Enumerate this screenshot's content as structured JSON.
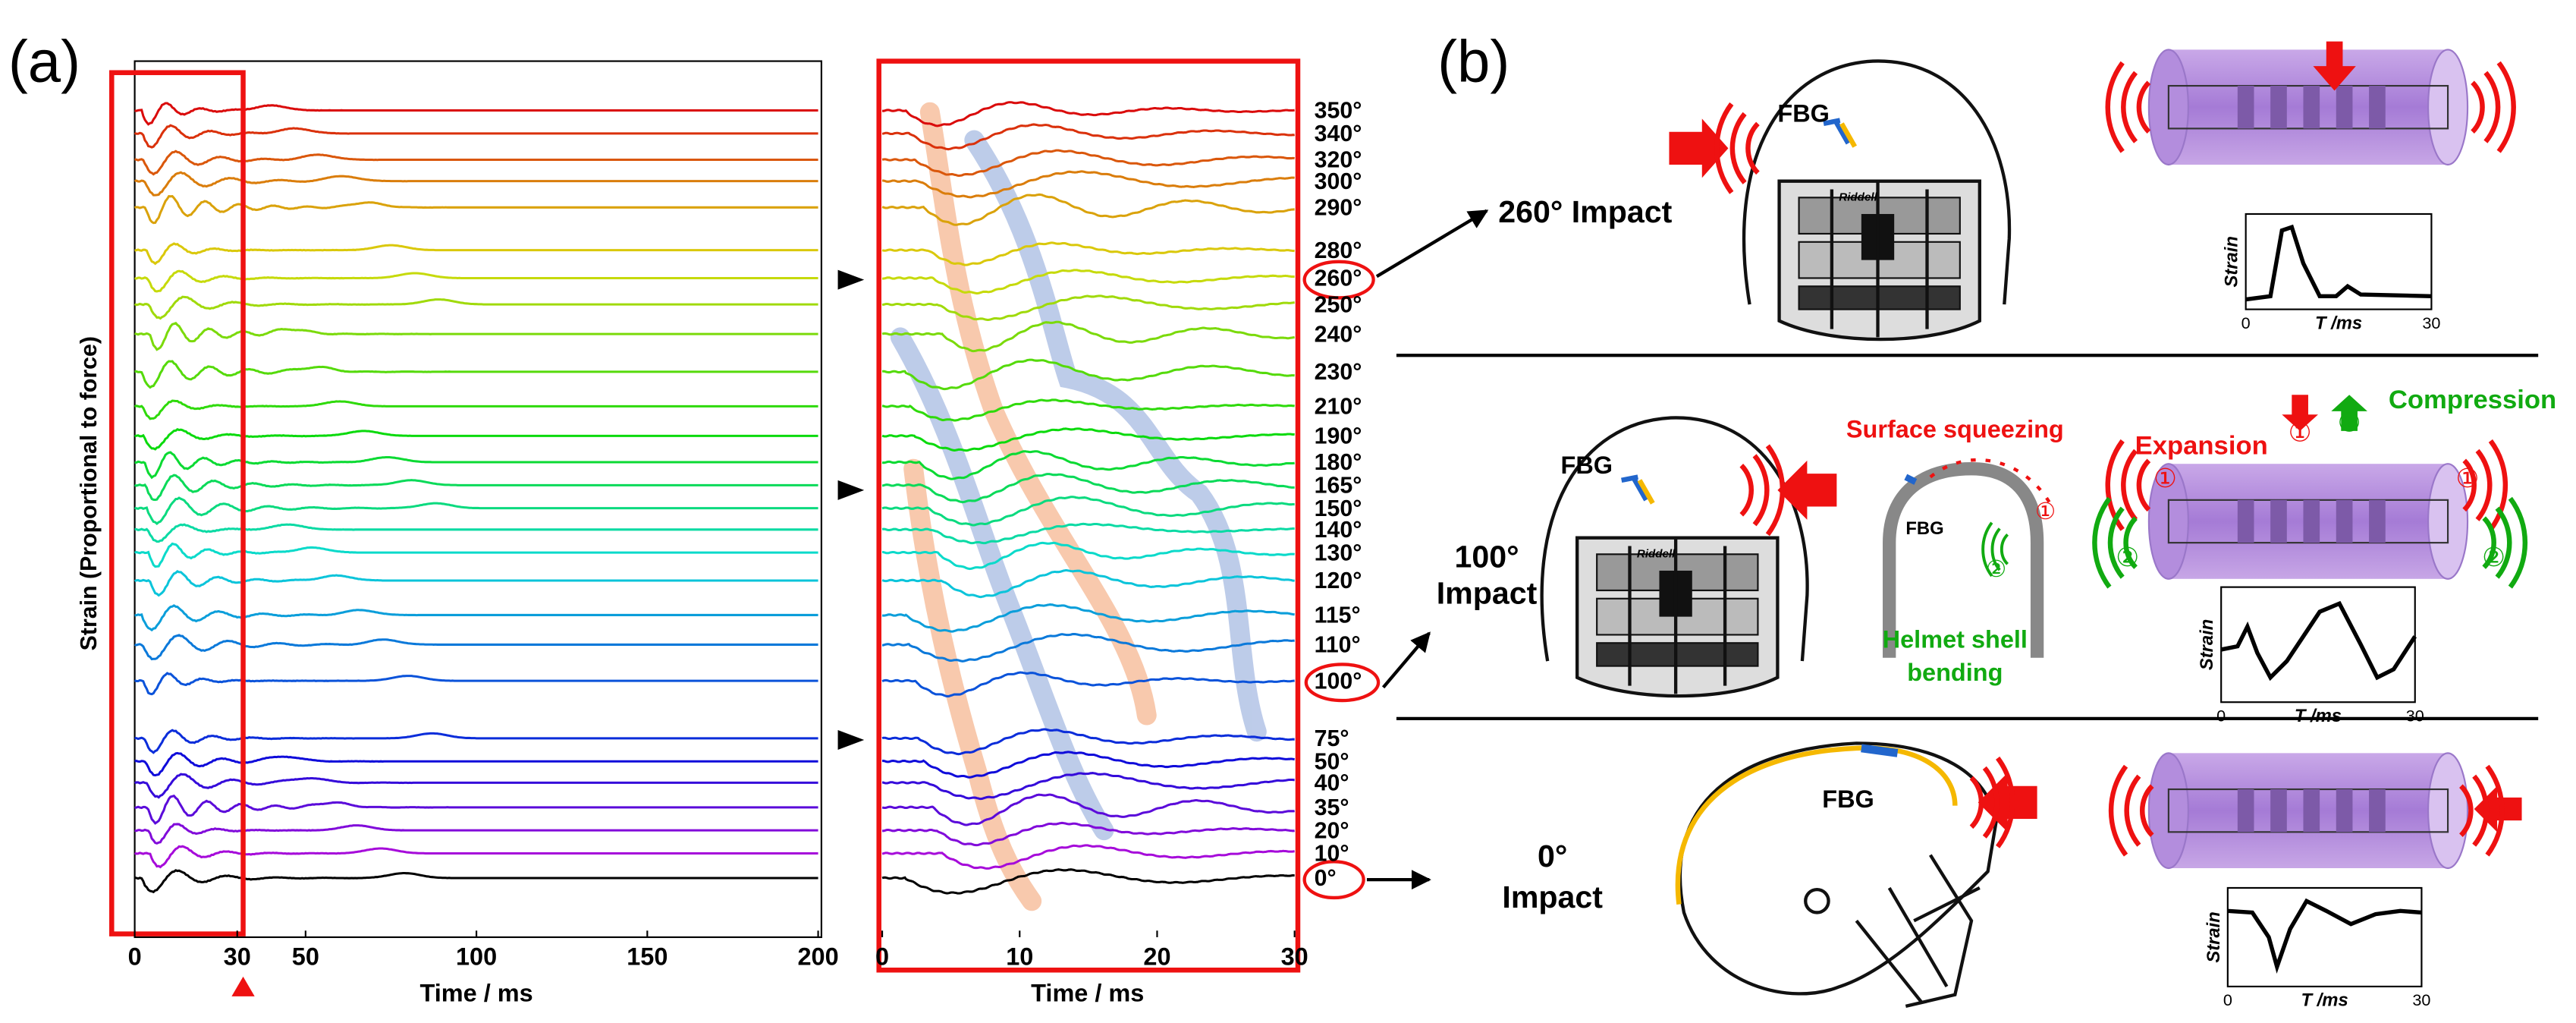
{
  "panel_a": {
    "label": "(a)",
    "y_label": "Strain (Proportional to force)",
    "full": {
      "x_label": "Time / ms",
      "xlim": [
        0,
        200
      ],
      "xticks": [
        0,
        30,
        50,
        100,
        150,
        200
      ]
    },
    "zoom": {
      "x_label": "Time / ms",
      "xlim": [
        0,
        30
      ],
      "xticks": [
        0,
        10,
        20,
        30
      ]
    },
    "angles": [
      "350°",
      "340°",
      "320°",
      "300°",
      "290°",
      "280°",
      "260°",
      "250°",
      "240°",
      "230°",
      "210°",
      "190°",
      "180°",
      "165°",
      "150°",
      "140°",
      "130°",
      "120°",
      "115°",
      "110°",
      "100°",
      "75°",
      "50°",
      "40°",
      "35°",
      "20°",
      "10°",
      "0°"
    ]
  },
  "panel_b": {
    "label": "(b)",
    "sensor_label": "FBG",
    "brand": "Riddell",
    "rows": [
      {
        "impact_lines": [
          "260° Impact"
        ]
      },
      {
        "impact_lines": [
          "100°",
          "Impact"
        ]
      },
      {
        "impact_lines": [
          "0°",
          "Impact"
        ]
      }
    ],
    "surface_squeezing": "Surface squeezing",
    "shell_bending": [
      "Helmet shell",
      "bending"
    ],
    "expansion": "Expansion",
    "compression": "Compression",
    "step_1": "①",
    "step_2": "②",
    "inset_y_label": "Strain",
    "inset_x_label": "T /ms",
    "inset_xticks": [
      0,
      30
    ]
  }
}
